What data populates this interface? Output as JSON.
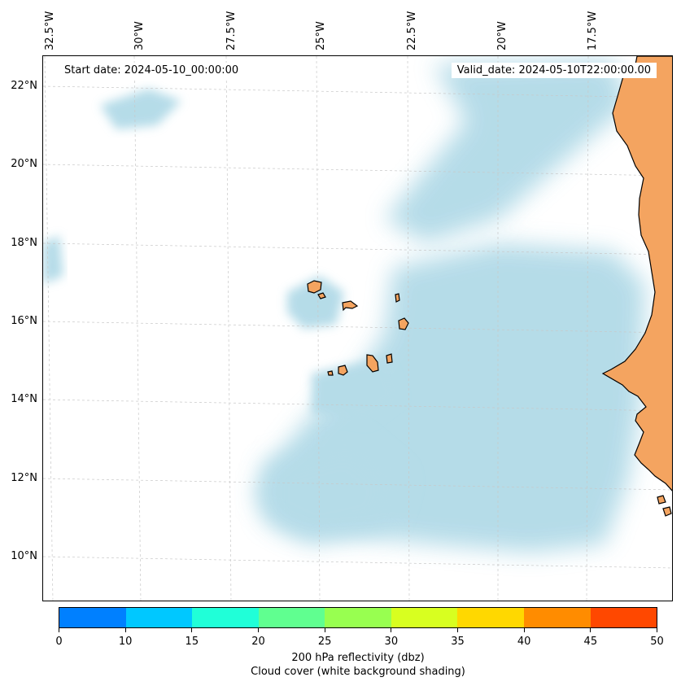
{
  "map": {
    "start_date": "Start date: 2024-05-10_00:00:00",
    "valid_date": "Valid_date: 2024-05-10T22:00:00.00",
    "lon_labels": [
      "32.5°W",
      "30°W",
      "27.5°W",
      "25°W",
      "22.5°W",
      "20°W",
      "17.5°W"
    ],
    "lat_labels": [
      "22°N",
      "20°N",
      "18°N",
      "16°N",
      "14°N",
      "12°N",
      "10°N"
    ],
    "colors": {
      "cloud": "#add8e6",
      "land": "#f4a460",
      "coast": "#000000",
      "grid": "#c8c8c8"
    }
  },
  "colorbar": {
    "ticks": [
      "0",
      "10",
      "15",
      "20",
      "25",
      "30",
      "35",
      "40",
      "45",
      "50"
    ],
    "colors": [
      "#0080ff",
      "#00c8ff",
      "#20ffd8",
      "#60ff90",
      "#98ff50",
      "#d8ff20",
      "#ffd800",
      "#ff8c00",
      "#ff4800"
    ],
    "label_line1": "200 hPa reflectivity (dbz)",
    "label_line2": "Cloud cover (white background shading)"
  }
}
